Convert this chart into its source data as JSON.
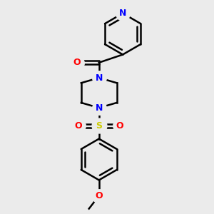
{
  "bg_color": "#ebebeb",
  "bond_color": "#000000",
  "n_color": "#0000ff",
  "o_color": "#ff0000",
  "s_color": "#cccc00",
  "lw": 1.8,
  "figsize": [
    3.0,
    3.0
  ],
  "dpi": 100,
  "xlim": [
    -2.5,
    2.5
  ],
  "ylim": [
    -4.2,
    3.2
  ]
}
